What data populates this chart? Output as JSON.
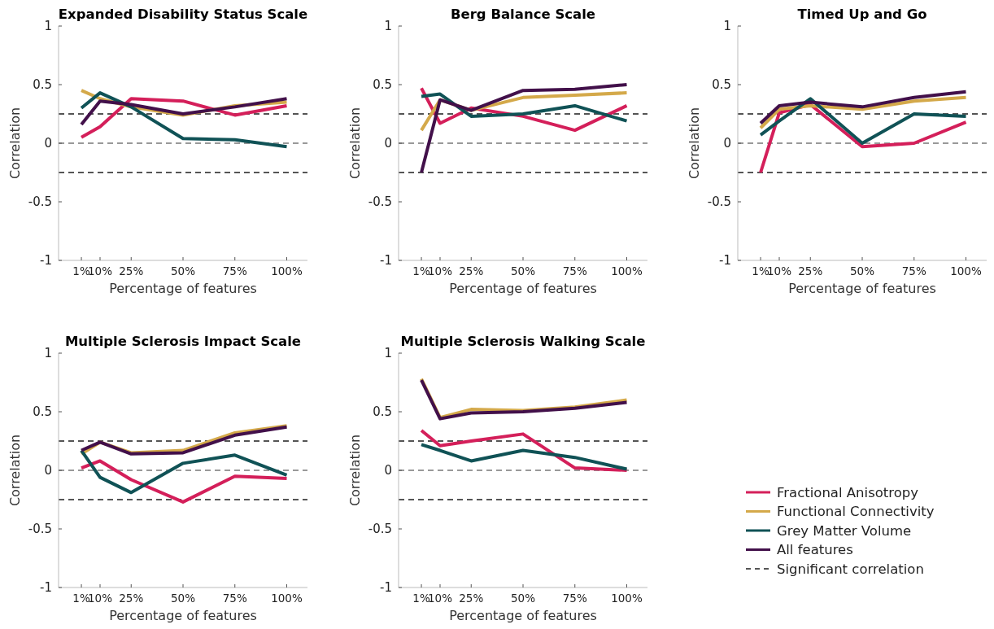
{
  "chart_data": [
    {
      "type": "line",
      "title": "Expanded Disability Status Scale",
      "xlabel": "Percentage of features",
      "ylabel": "Correlation",
      "x": [
        1,
        10,
        25,
        50,
        75,
        100
      ],
      "xlim": [
        -10,
        110
      ],
      "xticks": [
        {
          "value": 1,
          "label": "1%"
        },
        {
          "value": 10,
          "label": "10%"
        },
        {
          "value": 25,
          "label": "25%"
        },
        {
          "value": 50,
          "label": "50%"
        },
        {
          "value": 75,
          "label": "75%"
        },
        {
          "value": 100,
          "label": "100%"
        }
      ],
      "ylim": [
        -1,
        1
      ],
      "yticks": [
        -1,
        -0.5,
        0,
        0.5,
        1
      ],
      "grid": false,
      "legend": "bottom right",
      "line_style": "solid",
      "marker": "none",
      "ref_lines": [
        {
          "axis": "y",
          "value": 0,
          "color": "#999999",
          "line_style": "dashed"
        },
        {
          "axis": "y",
          "value": 0.25,
          "color": "#555555",
          "line_style": "dashed",
          "label": "Significant correlation"
        },
        {
          "axis": "y",
          "value": -0.25,
          "color": "#555555",
          "line_style": "dashed"
        }
      ],
      "series": [
        {
          "name": "Fractional Anisotropy",
          "color": "#d41f5a",
          "values": [
            0.05,
            0.14,
            0.38,
            0.36,
            0.24,
            0.32
          ]
        },
        {
          "name": "Functional Connectivity",
          "color": "#d4a94a",
          "values": [
            0.45,
            0.38,
            0.31,
            0.24,
            0.32,
            0.35
          ]
        },
        {
          "name": "Grey Matter Volume",
          "color": "#105256",
          "values": [
            0.3,
            0.43,
            0.31,
            0.04,
            0.03,
            -0.03
          ]
        },
        {
          "name": "All features",
          "color": "#42104a",
          "values": [
            0.16,
            0.36,
            0.33,
            0.25,
            0.31,
            0.38
          ]
        }
      ]
    },
    {
      "type": "line",
      "title": "Berg Balance Scale",
      "xlabel": "Percentage of features",
      "ylabel": "Correlation",
      "x": [
        1,
        10,
        25,
        50,
        75,
        100
      ],
      "xlim": [
        -10,
        110
      ],
      "xticks": [
        {
          "value": 1,
          "label": "1%"
        },
        {
          "value": 10,
          "label": "10%"
        },
        {
          "value": 25,
          "label": "25%"
        },
        {
          "value": 50,
          "label": "50%"
        },
        {
          "value": 75,
          "label": "75%"
        },
        {
          "value": 100,
          "label": "100%"
        }
      ],
      "ylim": [
        -1,
        1
      ],
      "yticks": [
        -1,
        -0.5,
        0,
        0.5,
        1
      ],
      "grid": false,
      "legend": false,
      "line_style": "solid",
      "marker": "none",
      "ref_lines": [
        {
          "axis": "y",
          "value": 0,
          "color": "#999999",
          "line_style": "dashed"
        },
        {
          "axis": "y",
          "value": 0.25,
          "color": "#555555",
          "line_style": "dashed"
        },
        {
          "axis": "y",
          "value": -0.25,
          "color": "#555555",
          "line_style": "dashed"
        }
      ],
      "series": [
        {
          "color": "#d41f5a",
          "values": [
            0.47,
            0.17,
            0.3,
            0.23,
            0.11,
            0.32
          ]
        },
        {
          "color": "#d4a94a",
          "values": [
            0.11,
            0.37,
            0.28,
            0.39,
            0.41,
            0.43
          ]
        },
        {
          "color": "#105256",
          "values": [
            0.4,
            0.42,
            0.23,
            0.25,
            0.32,
            0.19
          ]
        },
        {
          "color": "#42104a",
          "values": [
            -0.25,
            0.37,
            0.28,
            0.45,
            0.46,
            0.5
          ]
        }
      ]
    },
    {
      "type": "line",
      "title": "Timed Up and Go",
      "xlabel": "Percentage of features",
      "ylabel": "Correlation",
      "x": [
        1,
        10,
        25,
        50,
        75,
        100
      ],
      "xlim": [
        -10,
        110
      ],
      "xticks": [
        {
          "value": 1,
          "label": "1%"
        },
        {
          "value": 10,
          "label": "10%"
        },
        {
          "value": 25,
          "label": "25%"
        },
        {
          "value": 50,
          "label": "50%"
        },
        {
          "value": 75,
          "label": "75%"
        },
        {
          "value": 100,
          "label": "100%"
        }
      ],
      "ylim": [
        -1,
        1
      ],
      "yticks": [
        -1,
        -0.5,
        0,
        0.5,
        1
      ],
      "grid": false,
      "legend": false,
      "line_style": "solid",
      "marker": "none",
      "ref_lines": [
        {
          "axis": "y",
          "value": 0,
          "color": "#999999",
          "line_style": "dashed"
        },
        {
          "axis": "y",
          "value": 0.25,
          "color": "#555555",
          "line_style": "dashed"
        },
        {
          "axis": "y",
          "value": -0.25,
          "color": "#555555",
          "line_style": "dashed"
        }
      ],
      "series": [
        {
          "color": "#d41f5a",
          "values": [
            -0.25,
            0.26,
            0.33,
            -0.03,
            0,
            0.18
          ]
        },
        {
          "color": "#d4a94a",
          "values": [
            0.13,
            0.29,
            0.32,
            0.29,
            0.36,
            0.39
          ]
        },
        {
          "color": "#105256",
          "values": [
            0.07,
            0.19,
            0.38,
            0,
            0.25,
            0.23
          ]
        },
        {
          "color": "#42104a",
          "values": [
            0.17,
            0.32,
            0.35,
            0.31,
            0.39,
            0.44
          ]
        }
      ]
    },
    {
      "type": "line",
      "title": "Multiple Sclerosis Impact Scale",
      "xlabel": "Percentage of features",
      "ylabel": "Correlation",
      "x": [
        1,
        10,
        25,
        50,
        75,
        100
      ],
      "xlim": [
        -10,
        110
      ],
      "xticks": [
        {
          "value": 1,
          "label": "1%"
        },
        {
          "value": 10,
          "label": "10%"
        },
        {
          "value": 25,
          "label": "25%"
        },
        {
          "value": 50,
          "label": "50%"
        },
        {
          "value": 75,
          "label": "75%"
        },
        {
          "value": 100,
          "label": "100%"
        }
      ],
      "ylim": [
        -1,
        1
      ],
      "yticks": [
        -1,
        -0.5,
        0,
        0.5,
        1
      ],
      "grid": false,
      "legend": false,
      "line_style": "solid",
      "marker": "none",
      "ref_lines": [
        {
          "axis": "y",
          "value": 0,
          "color": "#999999",
          "line_style": "dashed"
        },
        {
          "axis": "y",
          "value": 0.25,
          "color": "#555555",
          "line_style": "dashed"
        },
        {
          "axis": "y",
          "value": -0.25,
          "color": "#555555",
          "line_style": "dashed"
        }
      ],
      "series": [
        {
          "color": "#d41f5a",
          "values": [
            0.02,
            0.08,
            -0.08,
            -0.27,
            -0.05,
            -0.07
          ]
        },
        {
          "color": "#d4a94a",
          "values": [
            0.14,
            0.24,
            0.15,
            0.17,
            0.32,
            0.38
          ]
        },
        {
          "color": "#105256",
          "values": [
            0.17,
            -0.06,
            -0.19,
            0.06,
            0.13,
            -0.04
          ]
        },
        {
          "color": "#42104a",
          "values": [
            0.17,
            0.24,
            0.14,
            0.15,
            0.3,
            0.37
          ]
        }
      ]
    },
    {
      "type": "line",
      "title": "Multiple Sclerosis Walking Scale",
      "xlabel": "Percentage of features",
      "ylabel": "Correlation",
      "x": [
        1,
        10,
        25,
        50,
        75,
        100
      ],
      "xlim": [
        -10,
        110
      ],
      "xticks": [
        {
          "value": 1,
          "label": "1%"
        },
        {
          "value": 10,
          "label": "10%"
        },
        {
          "value": 25,
          "label": "25%"
        },
        {
          "value": 50,
          "label": "50%"
        },
        {
          "value": 75,
          "label": "75%"
        },
        {
          "value": 100,
          "label": "100%"
        }
      ],
      "ylim": [
        -1,
        1
      ],
      "yticks": [
        -1,
        -0.5,
        0,
        0.5,
        1
      ],
      "grid": false,
      "legend": false,
      "line_style": "solid",
      "marker": "none",
      "ref_lines": [
        {
          "axis": "y",
          "value": 0,
          "color": "#999999",
          "line_style": "dashed"
        },
        {
          "axis": "y",
          "value": 0.25,
          "color": "#555555",
          "line_style": "dashed"
        },
        {
          "axis": "y",
          "value": -0.25,
          "color": "#555555",
          "line_style": "dashed"
        }
      ],
      "series": [
        {
          "color": "#d41f5a",
          "values": [
            0.34,
            0.21,
            0.25,
            0.31,
            0.02,
            0
          ]
        },
        {
          "color": "#d4a94a",
          "values": [
            0.78,
            0.45,
            0.52,
            0.51,
            0.54,
            0.6
          ]
        },
        {
          "color": "#105256",
          "values": [
            0.22,
            0.17,
            0.08,
            0.17,
            0.11,
            0.01
          ]
        },
        {
          "color": "#42104a",
          "values": [
            0.77,
            0.44,
            0.49,
            0.5,
            0.53,
            0.58
          ]
        }
      ]
    }
  ]
}
